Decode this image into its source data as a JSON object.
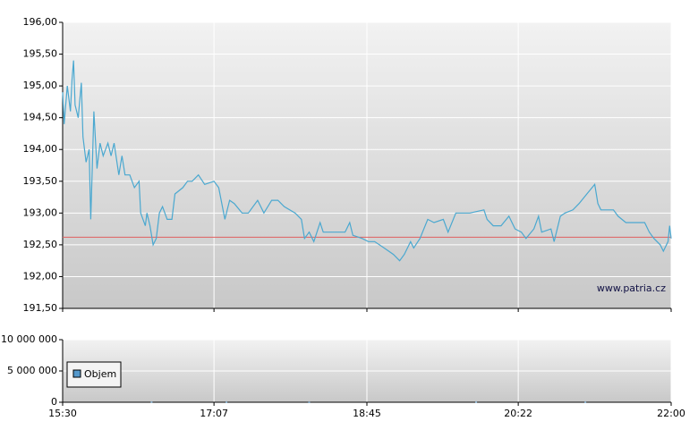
{
  "chart_data": [
    {
      "type": "line",
      "xlim": [
        "15:30",
        "22:00"
      ],
      "xticks": [
        "15:30",
        "17:07",
        "18:45",
        "20:22",
        "22:00"
      ],
      "ylim": [
        191.5,
        196
      ],
      "yticks": [
        {
          "value": 191.5,
          "label": "191,50"
        },
        {
          "value": 192,
          "label": "192,00"
        },
        {
          "value": 192.5,
          "label": "192,50"
        },
        {
          "value": 193,
          "label": "193,00"
        },
        {
          "value": 193.5,
          "label": "193,50"
        },
        {
          "value": 194,
          "label": "194,00"
        },
        {
          "value": 194.5,
          "label": "194,50"
        },
        {
          "value": 195,
          "label": "195,00"
        },
        {
          "value": 195.5,
          "label": "195,50"
        },
        {
          "value": 196,
          "label": "196,00"
        }
      ],
      "grid": true,
      "reference_line": {
        "value": 192.62,
        "color": "#e06060"
      },
      "watermark": "www.patria.cz",
      "series": [
        {
          "color": "#4aa8d0",
          "x": [
            "15:30",
            "15:31",
            "15:33",
            "15:35",
            "15:36",
            "15:37",
            "15:38",
            "15:40",
            "15:42",
            "15:43",
            "15:45",
            "15:47",
            "15:48",
            "15:49",
            "15:50",
            "15:52",
            "15:54",
            "15:56",
            "15:59",
            "16:01",
            "16:03",
            "16:06",
            "16:08",
            "16:10",
            "16:13",
            "16:16",
            "16:19",
            "16:20",
            "16:23",
            "16:24",
            "16:26",
            "16:28",
            "16:30",
            "16:32",
            "16:34",
            "16:37",
            "16:40",
            "16:42",
            "16:47",
            "16:50",
            "16:53",
            "16:57",
            "17:01",
            "17:07",
            "17:10",
            "17:14",
            "17:17",
            "17:20",
            "17:25",
            "17:29",
            "17:35",
            "17:39",
            "17:44",
            "17:48",
            "17:52",
            "17:59",
            "18:03",
            "18:05",
            "18:08",
            "18:11",
            "18:15",
            "18:17",
            "18:25",
            "18:31",
            "18:34",
            "18:36",
            "18:42",
            "18:46",
            "18:50",
            "18:56",
            "19:02",
            "19:06",
            "19:09",
            "19:13",
            "19:15",
            "19:19",
            "19:24",
            "19:28",
            "19:34",
            "19:37",
            "19:42",
            "19:51",
            "20:00",
            "20:02",
            "20:06",
            "20:11",
            "20:16",
            "20:20",
            "20:24",
            "20:27",
            "20:32",
            "20:35",
            "20:37",
            "20:43",
            "20:45",
            "20:49",
            "20:52",
            "20:57",
            "21:01",
            "21:06",
            "21:11",
            "21:13",
            "21:15",
            "21:23",
            "21:26",
            "21:31",
            "21:37",
            "21:43",
            "21:46",
            "21:49",
            "21:53",
            "21:55",
            "21:58",
            "21:59",
            "22:00"
          ],
          "values": [
            194.9,
            194.4,
            195.0,
            194.6,
            195.1,
            195.4,
            194.7,
            194.5,
            195.05,
            194.2,
            193.8,
            194.0,
            192.9,
            193.7,
            194.6,
            193.7,
            194.1,
            193.9,
            194.1,
            193.9,
            194.1,
            193.6,
            193.9,
            193.6,
            193.6,
            193.4,
            193.5,
            193.0,
            192.8,
            193.0,
            192.8,
            192.5,
            192.6,
            193.0,
            193.1,
            192.9,
            192.9,
            193.3,
            193.4,
            193.5,
            193.5,
            193.6,
            193.45,
            193.5,
            193.4,
            192.9,
            193.2,
            193.15,
            193.0,
            193.0,
            193.2,
            193.0,
            193.2,
            193.2,
            193.1,
            193.0,
            192.9,
            192.6,
            192.7,
            192.55,
            192.85,
            192.7,
            192.7,
            192.7,
            192.85,
            192.65,
            192.6,
            192.55,
            192.55,
            192.45,
            192.35,
            192.25,
            192.35,
            192.55,
            192.45,
            192.6,
            192.9,
            192.85,
            192.9,
            192.7,
            193.0,
            193.0,
            193.05,
            192.9,
            192.8,
            192.8,
            192.95,
            192.75,
            192.7,
            192.6,
            192.75,
            192.95,
            192.7,
            192.75,
            192.55,
            192.95,
            193.0,
            193.05,
            193.15,
            193.3,
            193.45,
            193.15,
            193.05,
            193.05,
            192.95,
            192.85,
            192.85,
            192.85,
            192.7,
            192.6,
            192.5,
            192.4,
            192.55,
            192.8,
            192.6
          ]
        }
      ]
    },
    {
      "type": "bar",
      "xlim": [
        "15:30",
        "22:00"
      ],
      "xticks": [
        "15:30",
        "17:07",
        "18:45",
        "20:22",
        "22:00"
      ],
      "ylim": [
        0,
        10000000
      ],
      "yticks": [
        0,
        {
          "value": 5000000,
          "label": "5 000 000"
        },
        {
          "value": 10000000,
          "label": "10 000 000"
        }
      ],
      "grid": true,
      "series": [
        {
          "name": "Objem",
          "color": "#5599cc",
          "x": [
            "16:27",
            "17:15",
            "18:08",
            "19:55",
            "21:05"
          ],
          "values": [
            80000,
            60000,
            50000,
            70000,
            60000
          ]
        }
      ]
    }
  ]
}
